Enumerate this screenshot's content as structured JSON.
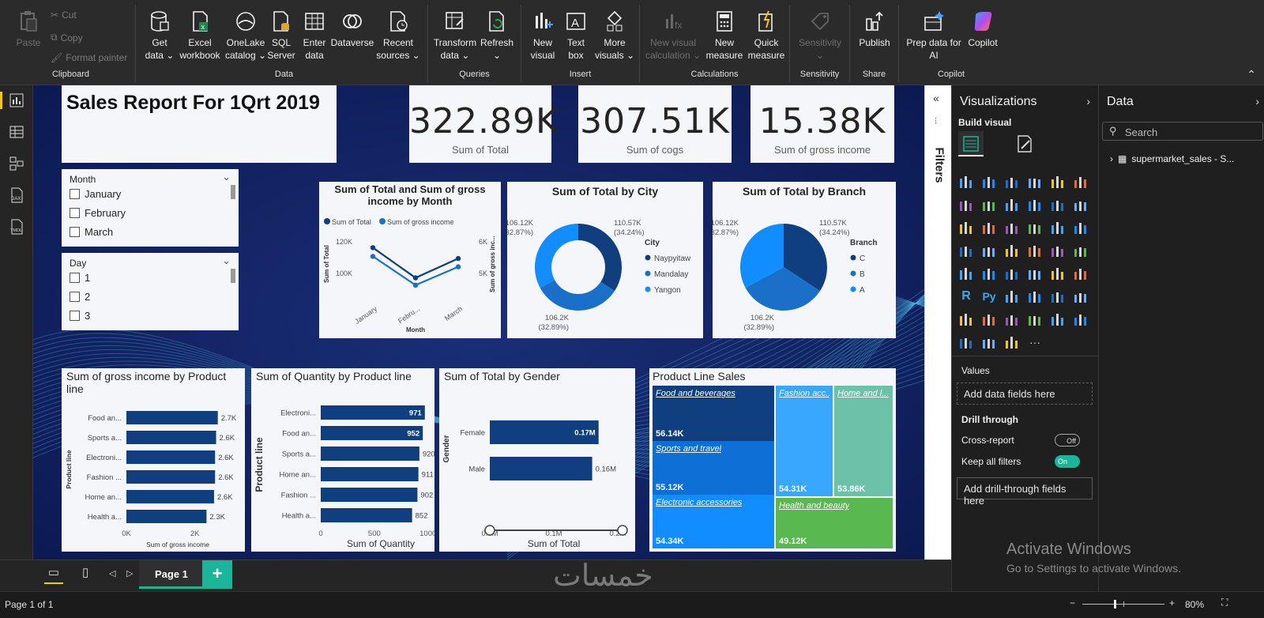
{
  "ribbon": {
    "clipboard": {
      "paste": "Paste",
      "cut": "Cut",
      "copy": "Copy",
      "format_painter": "Format painter",
      "label": "Clipboard"
    },
    "data": {
      "get_data": "Get data ⌄",
      "excel": "Excel workbook",
      "onelake": "OneLake catalog ⌄",
      "sql": "SQL Server",
      "enter": "Enter data",
      "dataverse": "Dataverse",
      "recent": "Recent sources ⌄",
      "label": "Data"
    },
    "queries": {
      "transform": "Transform data ⌄",
      "refresh": "Refresh ⌄",
      "label": "Queries"
    },
    "insert": {
      "new_visual": "New visual",
      "text_box": "Text box",
      "more_visuals": "More visuals ⌄",
      "label": "Insert"
    },
    "calculations": {
      "new_visual_calc": "New visual calculation ⌄",
      "new_measure": "New measure",
      "quick_measure": "Quick measure",
      "label": "Calculations"
    },
    "sensitivity": {
      "btn": "Sensitivity ⌄",
      "label": "Sensitivity"
    },
    "share": {
      "publish": "Publish",
      "label": "Share"
    },
    "copilot": {
      "prep": "Prep data for AI",
      "copilot": "Copilot",
      "label": "Copilot"
    }
  },
  "report": {
    "title": "Sales Report For 1Qrt 2019",
    "kpis": [
      {
        "value": "322.89K",
        "label": "Sum of Total"
      },
      {
        "value": "307.51K",
        "label": "Sum of cogs"
      },
      {
        "value": "15.38K",
        "label": "Sum of gross income"
      }
    ],
    "slicer_month": {
      "title": "Month",
      "items": [
        "January",
        "February",
        "March"
      ]
    },
    "slicer_day": {
      "title": "Day",
      "items": [
        "1",
        "2",
        "3"
      ]
    }
  },
  "chart_data": [
    {
      "type": "line",
      "title": "Sum of Total and Sum of gross income by Month",
      "legend": [
        "Sum of Total",
        "Sum of gross income"
      ],
      "categories": [
        "January",
        "Febru...",
        "March"
      ],
      "xlabel": "Month",
      "ylabel": "Sum of Total",
      "y2label": "Sum of gross inc...",
      "yticks": [
        "120K",
        "100K"
      ],
      "y2ticks": [
        "6K",
        "5K"
      ],
      "series": [
        {
          "name": "Sum of Total",
          "values": [
            116.29,
            97.22,
            109.46
          ]
        },
        {
          "name": "Sum of gross income",
          "values": [
            5.54,
            4.63,
            5.21
          ]
        }
      ]
    },
    {
      "type": "pie",
      "title": "Sum of Total by City",
      "legend_title": "City",
      "labels": [
        "Naypyitaw",
        "Mandalay",
        "Yangon"
      ],
      "values": [
        110.57,
        106.2,
        106.12
      ],
      "data_labels": [
        "110.57K (34.24%)",
        "106.2K (32.89%)",
        "106.12K (32.87%)"
      ],
      "colors": [
        "#0f3f7f",
        "#1a6fc9",
        "#118dff"
      ]
    },
    {
      "type": "pie",
      "title": "Sum of Total by Branch",
      "legend_title": "Branch",
      "labels": [
        "C",
        "B",
        "A"
      ],
      "values": [
        110.57,
        106.2,
        106.12
      ],
      "data_labels": [
        "110.57K (34.24%)",
        "106.2K (32.89%)",
        "106.12K (32.87%)"
      ],
      "colors": [
        "#0f3f7f",
        "#1a6fc9",
        "#118dff"
      ]
    },
    {
      "type": "bar",
      "title": "Sum of gross income by Product line",
      "categories": [
        "Food an...",
        "Sports a...",
        "Electroni...",
        "Fashion ...",
        "Home an...",
        "Health a..."
      ],
      "values": [
        2.67,
        2.62,
        2.59,
        2.59,
        2.56,
        2.34
      ],
      "data_labels": [
        "2.7K",
        "2.6K",
        "2.6K",
        "2.6K",
        "2.6K",
        "2.3K"
      ],
      "xticks": [
        "0K",
        "2K"
      ],
      "xlabel": "Sum of gross income",
      "ylabel": "Product line"
    },
    {
      "type": "bar",
      "title": "Sum of Quantity by Product line",
      "categories": [
        "Electroni...",
        "Food an...",
        "Sports a...",
        "Home an...",
        "Fashion ...",
        "Health a..."
      ],
      "values": [
        971,
        952,
        920,
        911,
        902,
        852
      ],
      "data_labels": [
        "971",
        "952",
        "920",
        "911",
        "902",
        "852"
      ],
      "xticks": [
        "0",
        "500",
        "1000"
      ],
      "xlabel": "Sum of Quantity",
      "ylabel": "Product line"
    },
    {
      "type": "bar",
      "title": "Sum of Total by Gender",
      "categories": [
        "Female",
        "Male"
      ],
      "values": [
        0.17,
        0.16
      ],
      "data_labels": [
        "0.17M",
        "0.16M"
      ],
      "xticks": [
        "0.0M",
        "0.1M",
        "0.2M"
      ],
      "xlabel": "Sum of Total",
      "ylabel": "Gender"
    },
    {
      "type": "heatmap",
      "title": "Product Line Sales",
      "cells": [
        {
          "name": "Food and beverages",
          "value": "56.14K",
          "color": "#0f3f7f"
        },
        {
          "name": "Sports and travel",
          "value": "55.12K",
          "color": "#0e6fd6"
        },
        {
          "name": "Electronic accessories",
          "value": "54.34K",
          "color": "#118dff"
        },
        {
          "name": "Fashion acc...",
          "value": "54.31K",
          "color": "#3aa7ff"
        },
        {
          "name": "Home and l...",
          "value": "53.86K",
          "color": "#6cc1a9"
        },
        {
          "name": "Health and beauty",
          "value": "49.12K",
          "color": "#59b84f"
        }
      ]
    }
  ],
  "filters": {
    "label": "Filters"
  },
  "visualizations": {
    "title": "Visualizations",
    "build_visual": "Build visual",
    "values": "Values",
    "add_fields": "Add data fields here",
    "drill_through": "Drill through",
    "cross_report": "Cross-report",
    "cross_state": "Off",
    "keep_filters": "Keep all filters",
    "keep_state": "On",
    "add_drill": "Add drill-through fields here"
  },
  "data_pane": {
    "title": "Data",
    "search_placeholder": "Search",
    "table": "supermarket_sales - S..."
  },
  "pagebar": {
    "page": "Page 1",
    "add": "+"
  },
  "status": {
    "page_info": "Page 1 of 1",
    "zoom": "80%"
  },
  "watermark": {
    "title": "Activate Windows",
    "sub": "Go to Settings to activate Windows.",
    "logo": "خمسات"
  }
}
